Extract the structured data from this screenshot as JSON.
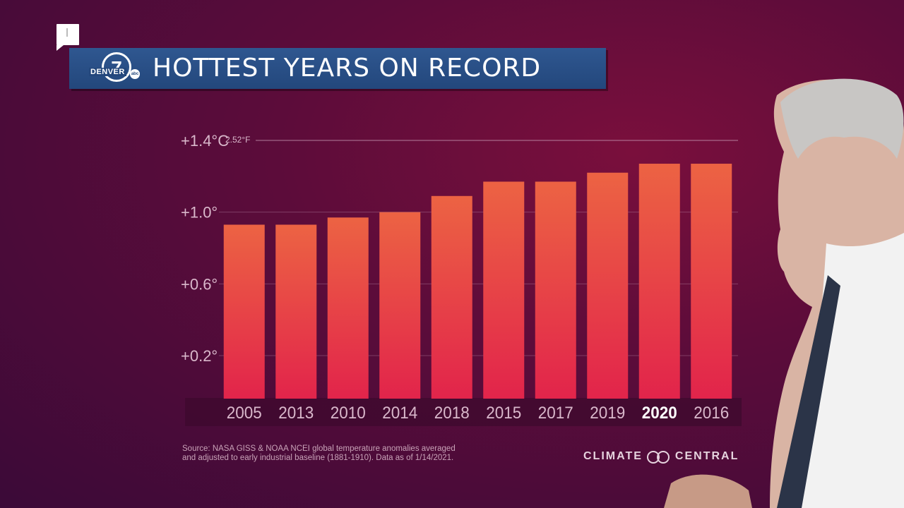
{
  "title": "HOTTEST YEARS ON RECORD",
  "logo": {
    "number": "7",
    "station": "DENVER",
    "network": "abc"
  },
  "source_line1": "Source: NASA GISS & NOAA NCEI global temperature anomalies averaged",
  "source_line2": "and adjusted to early industrial baseline (1881-1910). Data as of 1/14/2021.",
  "brand": {
    "left": "CLIMATE",
    "right": "CENTRAL"
  },
  "colors": {
    "bar_top": "#ec6343",
    "bar_bottom": "#e2244b",
    "title_bg": "#23477c",
    "highlight_label": "#ffffff",
    "label": "#d9b8cb"
  },
  "chart_data": {
    "type": "bar",
    "title": "HOTTEST YEARS ON RECORD",
    "categories": [
      "2005",
      "2013",
      "2010",
      "2014",
      "2018",
      "2015",
      "2017",
      "2019",
      "2020",
      "2016"
    ],
    "values": [
      0.93,
      0.93,
      0.97,
      1.0,
      1.09,
      1.17,
      1.17,
      1.22,
      1.27,
      1.27
    ],
    "highlight": "2020",
    "ylim": [
      -0.04,
      1.4
    ],
    "yticks": [
      {
        "value": 1.4,
        "label": "+1.4°C",
        "sublabel": "2.52°F"
      },
      {
        "value": 1.0,
        "label": "+1.0°"
      },
      {
        "value": 0.6,
        "label": "+0.6°"
      },
      {
        "value": 0.2,
        "label": "+0.2°"
      }
    ],
    "grid": true
  }
}
